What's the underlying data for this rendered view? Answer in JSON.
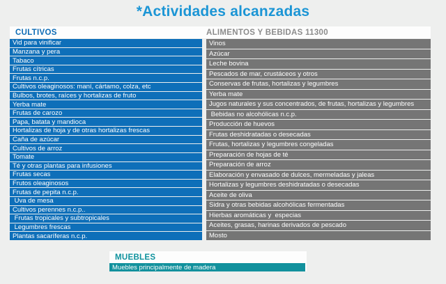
{
  "title": "*Actividades alcanzadas",
  "colors": {
    "page_background": "#eeefee",
    "title_blue": "#1b95d5",
    "cultivos_header_blue": "#0d6cb5",
    "alimentos_header_gray": "#8c8c8c",
    "cultivos_row_blue": "#0e6fb9",
    "alimentos_row_gray": "#757575",
    "muebles_teal": "#12919d",
    "panel_white": "#fdfdfd"
  },
  "sections": {
    "cultivos": {
      "header": "CULTIVOS",
      "items": [
        "Vid para vinificar",
        "Manzana y pera",
        "Tabaco",
        "Frutas cítricas",
        "Frutas n.c.p.",
        "Cultivos oleaginosos: maní, cártamo, colza, etc",
        "Bulbos, brotes, raíces y hortalizas de fruto",
        "Yerba mate",
        "Frutas de carozo",
        "Papa, batata y mandioca",
        "Hortalizas de hoja y de otras hortalizas frescas",
        "Caña de azúcar",
        "Cultivos de arroz",
        "Tomate",
        "Té y otras plantas para infusiones",
        "Frutas secas",
        "Frutos oleaginosos",
        "Frutas de pepita n.c.p.",
        " Uva de mesa",
        "Cultivos perennes n.c.p..",
        " Frutas tropicales y subtropicales",
        " Legumbres frescas",
        "Plantas sacaríferas n.c.p."
      ]
    },
    "alimentos": {
      "header": "ALIMENTOS Y BEBIDAS 11300",
      "items": [
        "Vinos",
        "Azúcar",
        "Leche bovina",
        "Pescados de mar, crustáceos y otros",
        "Conservas de frutas, hortalizas y legumbres",
        "Yerba mate",
        "Jugos naturales y sus concentrados, de frutas, hortalizas y legumbres",
        " Bebidas no alcohólicas n.c.p.",
        "Producción de huevos",
        "Frutas deshidratadas o desecadas",
        "Frutas, hortalizas y legumbres congeladas",
        "Preparación de hojas de té",
        "Preparación de arroz",
        "Elaboración y envasado de dulces, mermeladas y jaleas",
        "Hortalizas y legumbres deshidratadas o desecadas",
        "Aceite de oliva",
        "Sidra y otras bebidas alcohólicas fermentadas",
        "Hierbas aromáticas y  especias",
        "Aceites, grasas, harinas derivados de pescado",
        "Mosto"
      ]
    },
    "muebles": {
      "header": "MUEBLES",
      "items": [
        "Muebles principalmente de madera"
      ]
    }
  }
}
